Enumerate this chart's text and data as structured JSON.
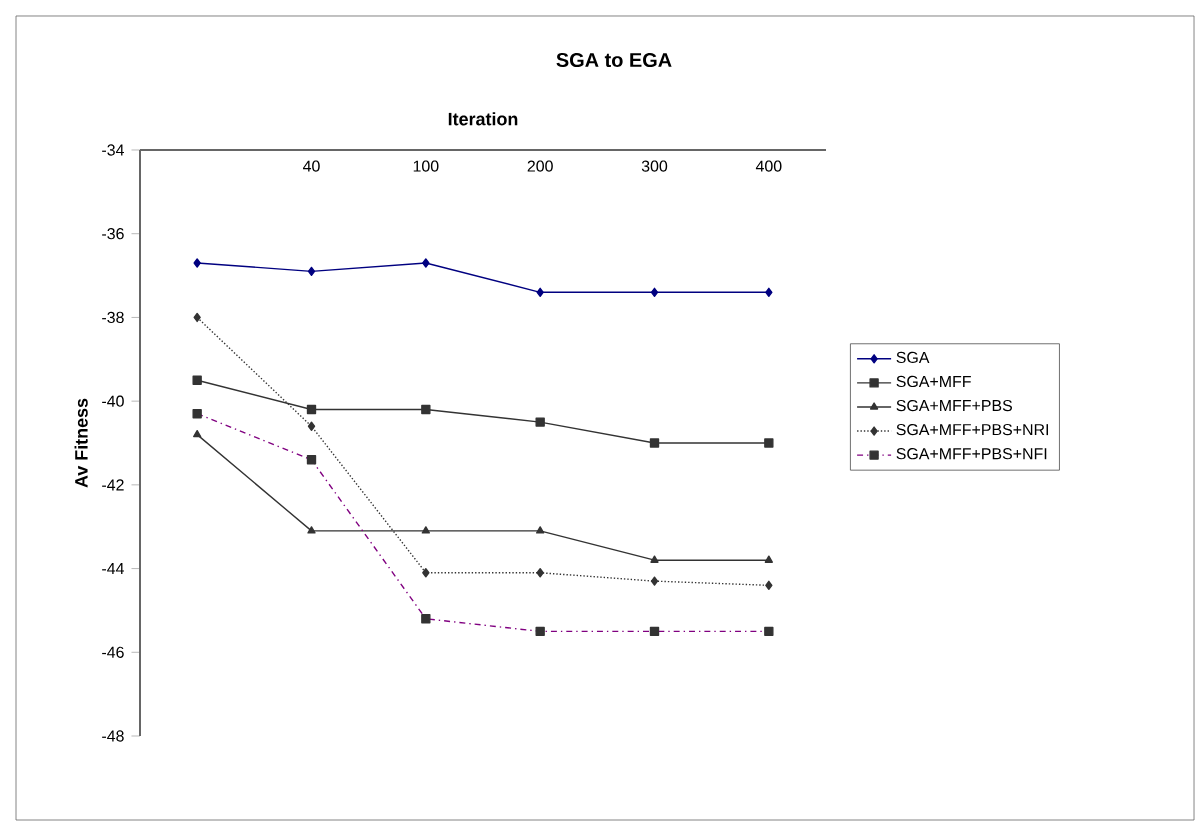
{
  "chart_data": {
    "type": "line",
    "title": "SGA to EGA",
    "xlabel": "Iteration",
    "ylabel": "Av Fitness",
    "categories": [
      null,
      "40",
      "100",
      "200",
      "300",
      "400"
    ],
    "ylim": [
      -48,
      -34
    ],
    "yticks": [
      -48,
      -46,
      -44,
      -42,
      -40,
      -38,
      -36,
      -34
    ],
    "grid": false,
    "legend": "right",
    "series": [
      {
        "name": "SGA",
        "color": "#000080",
        "marker": "diamond",
        "line_style": "solid",
        "values": [
          -36.7,
          -36.9,
          -36.7,
          -37.4,
          -37.4,
          -37.4
        ]
      },
      {
        "name": "SGA+MFF",
        "color": "#333333",
        "marker": "square",
        "line_style": "solid",
        "values": [
          -39.5,
          -40.2,
          -40.2,
          -40.5,
          -41,
          -41
        ]
      },
      {
        "name": "SGA+MFF+PBS",
        "color": "#333333",
        "marker": "triangle",
        "line_style": "solid",
        "values": [
          -40.8,
          -43.1,
          -43.1,
          -43.1,
          -43.8,
          -43.8
        ]
      },
      {
        "name": "SGA+MFF+PBS+NRI",
        "color": "#333333",
        "marker": "diamond",
        "line_style": "dotted",
        "values": [
          -38,
          -40.6,
          -44.1,
          -44.1,
          -44.3,
          -44.4
        ]
      },
      {
        "name": "SGA+MFF+PBS+NFI",
        "color": "#800080",
        "marker": "square",
        "line_style": "dashed",
        "values": [
          -40.3,
          -41.4,
          -45.2,
          -45.5,
          -45.5,
          -45.5
        ]
      }
    ]
  }
}
